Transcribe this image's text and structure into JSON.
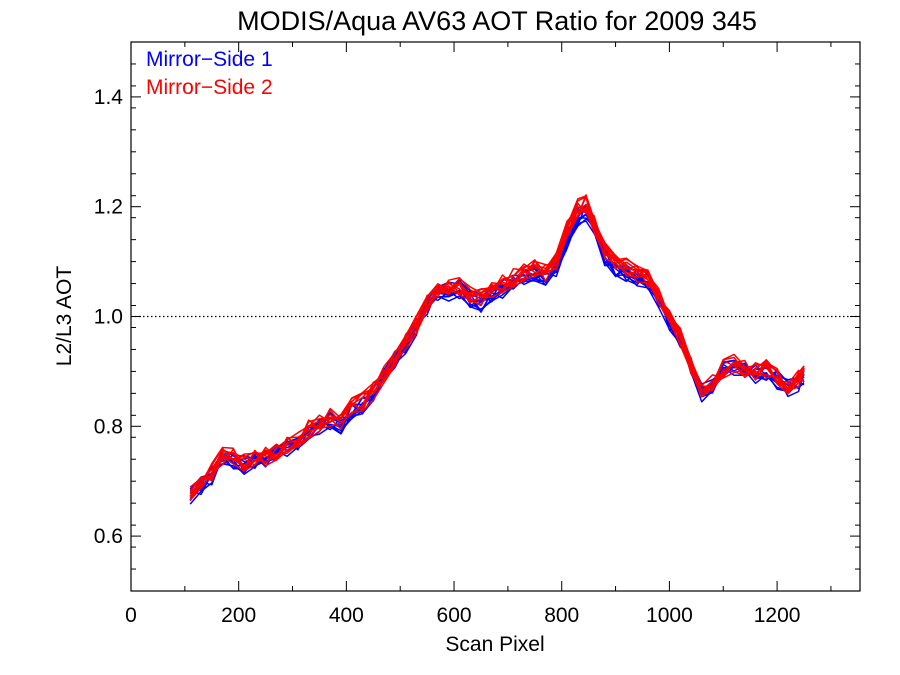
{
  "chart_data": {
    "type": "line",
    "title": "MODIS/Aqua AV63 AOT Ratio for 2009 345",
    "xlabel": "Scan Pixel",
    "ylabel": "L2/L3 AOT",
    "xlim": [
      0,
      1354
    ],
    "ylim": [
      0.5,
      1.5
    ],
    "xticks": [
      0,
      200,
      400,
      600,
      800,
      1000,
      1200
    ],
    "xtick_labels": [
      "0",
      "200",
      "400",
      "600",
      "800",
      "1000",
      "1200"
    ],
    "yticks": [
      0.6,
      0.8,
      1.0,
      1.2,
      1.4
    ],
    "ytick_labels": [
      "0.6",
      "0.8",
      "1.0",
      "1.2",
      "1.4"
    ],
    "reference_line": {
      "y": 1.0,
      "style": "dotted"
    },
    "legend": {
      "placement": "top-left",
      "entries": [
        {
          "label": "Mirror−Side 1",
          "color": "#0000ff"
        },
        {
          "label": "Mirror−Side 2",
          "color": "#ff0000"
        }
      ]
    },
    "grid": false,
    "x": [
      110,
      130,
      150,
      170,
      190,
      210,
      230,
      250,
      270,
      290,
      310,
      330,
      350,
      370,
      390,
      410,
      430,
      450,
      470,
      490,
      510,
      530,
      550,
      570,
      590,
      610,
      630,
      650,
      670,
      690,
      710,
      730,
      750,
      770,
      790,
      810,
      830,
      845,
      860,
      880,
      900,
      920,
      940,
      960,
      980,
      1000,
      1020,
      1040,
      1060,
      1080,
      1100,
      1120,
      1140,
      1160,
      1180,
      1200,
      1220,
      1240,
      1250
    ],
    "series": [
      {
        "name": "Mirror−Side 1",
        "color": "#0000ff",
        "count": 10,
        "values": [
          0.675,
          0.69,
          0.71,
          0.74,
          0.74,
          0.73,
          0.735,
          0.74,
          0.75,
          0.76,
          0.77,
          0.79,
          0.8,
          0.81,
          0.8,
          0.83,
          0.84,
          0.86,
          0.89,
          0.92,
          0.95,
          0.98,
          1.02,
          1.04,
          1.045,
          1.05,
          1.03,
          1.025,
          1.04,
          1.05,
          1.06,
          1.07,
          1.08,
          1.07,
          1.09,
          1.14,
          1.18,
          1.19,
          1.16,
          1.11,
          1.09,
          1.08,
          1.07,
          1.065,
          1.03,
          0.99,
          0.96,
          0.91,
          0.86,
          0.875,
          0.9,
          0.91,
          0.9,
          0.895,
          0.9,
          0.885,
          0.87,
          0.88,
          0.89
        ]
      },
      {
        "name": "Mirror−Side 2",
        "color": "#ff0000",
        "count": 10,
        "values": [
          0.68,
          0.695,
          0.715,
          0.745,
          0.745,
          0.735,
          0.74,
          0.745,
          0.755,
          0.765,
          0.775,
          0.795,
          0.805,
          0.815,
          0.805,
          0.835,
          0.845,
          0.865,
          0.895,
          0.925,
          0.955,
          0.985,
          1.025,
          1.045,
          1.05,
          1.055,
          1.04,
          1.035,
          1.05,
          1.06,
          1.07,
          1.08,
          1.09,
          1.08,
          1.1,
          1.16,
          1.2,
          1.205,
          1.17,
          1.12,
          1.1,
          1.09,
          1.08,
          1.07,
          1.035,
          0.995,
          0.965,
          0.915,
          0.865,
          0.88,
          0.905,
          0.915,
          0.905,
          0.9,
          0.905,
          0.89,
          0.875,
          0.885,
          0.895
        ]
      }
    ]
  }
}
